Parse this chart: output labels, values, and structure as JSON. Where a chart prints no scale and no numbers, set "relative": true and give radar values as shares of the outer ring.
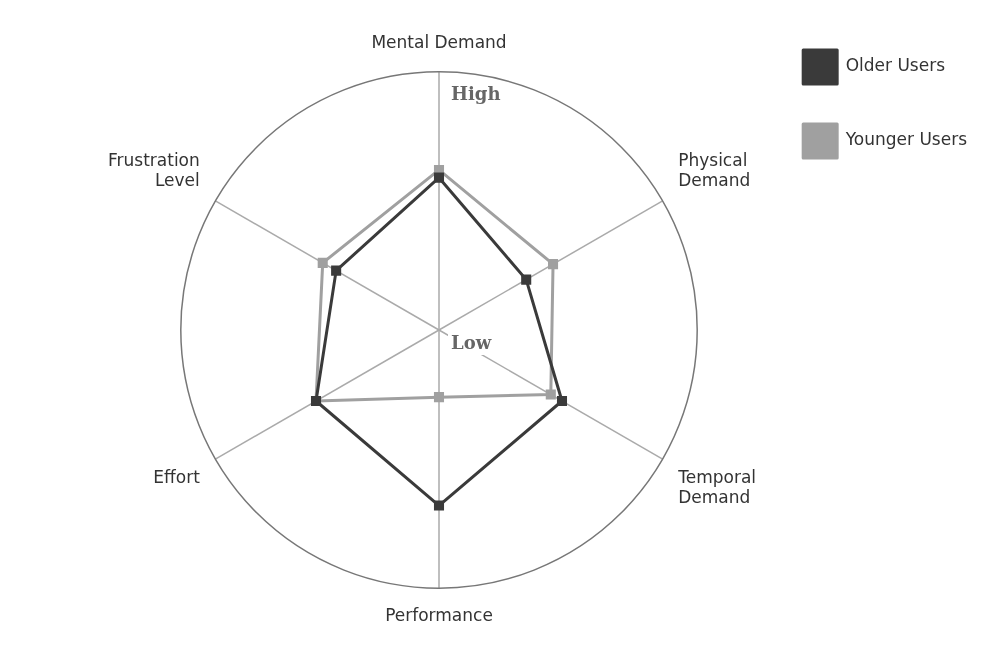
{
  "chart_data": {
    "type": "radar",
    "relative": true,
    "categories": [
      "Mental Demand",
      "Physical Demand",
      "Temporal Demand",
      "Performance",
      "Effort",
      "Frustration Level"
    ],
    "series": [
      {
        "name": "Older Users",
        "color": "#3a3a3a",
        "values": [
          0.59,
          0.39,
          0.55,
          0.68,
          0.55,
          0.46
        ]
      },
      {
        "name": "Younger Users",
        "color": "#a0a0a0",
        "values": [
          0.62,
          0.51,
          0.5,
          0.26,
          0.55,
          0.52
        ]
      }
    ],
    "annotations": [
      "High",
      "Low"
    ],
    "marker": "square",
    "legend": "top right",
    "grid": false
  }
}
